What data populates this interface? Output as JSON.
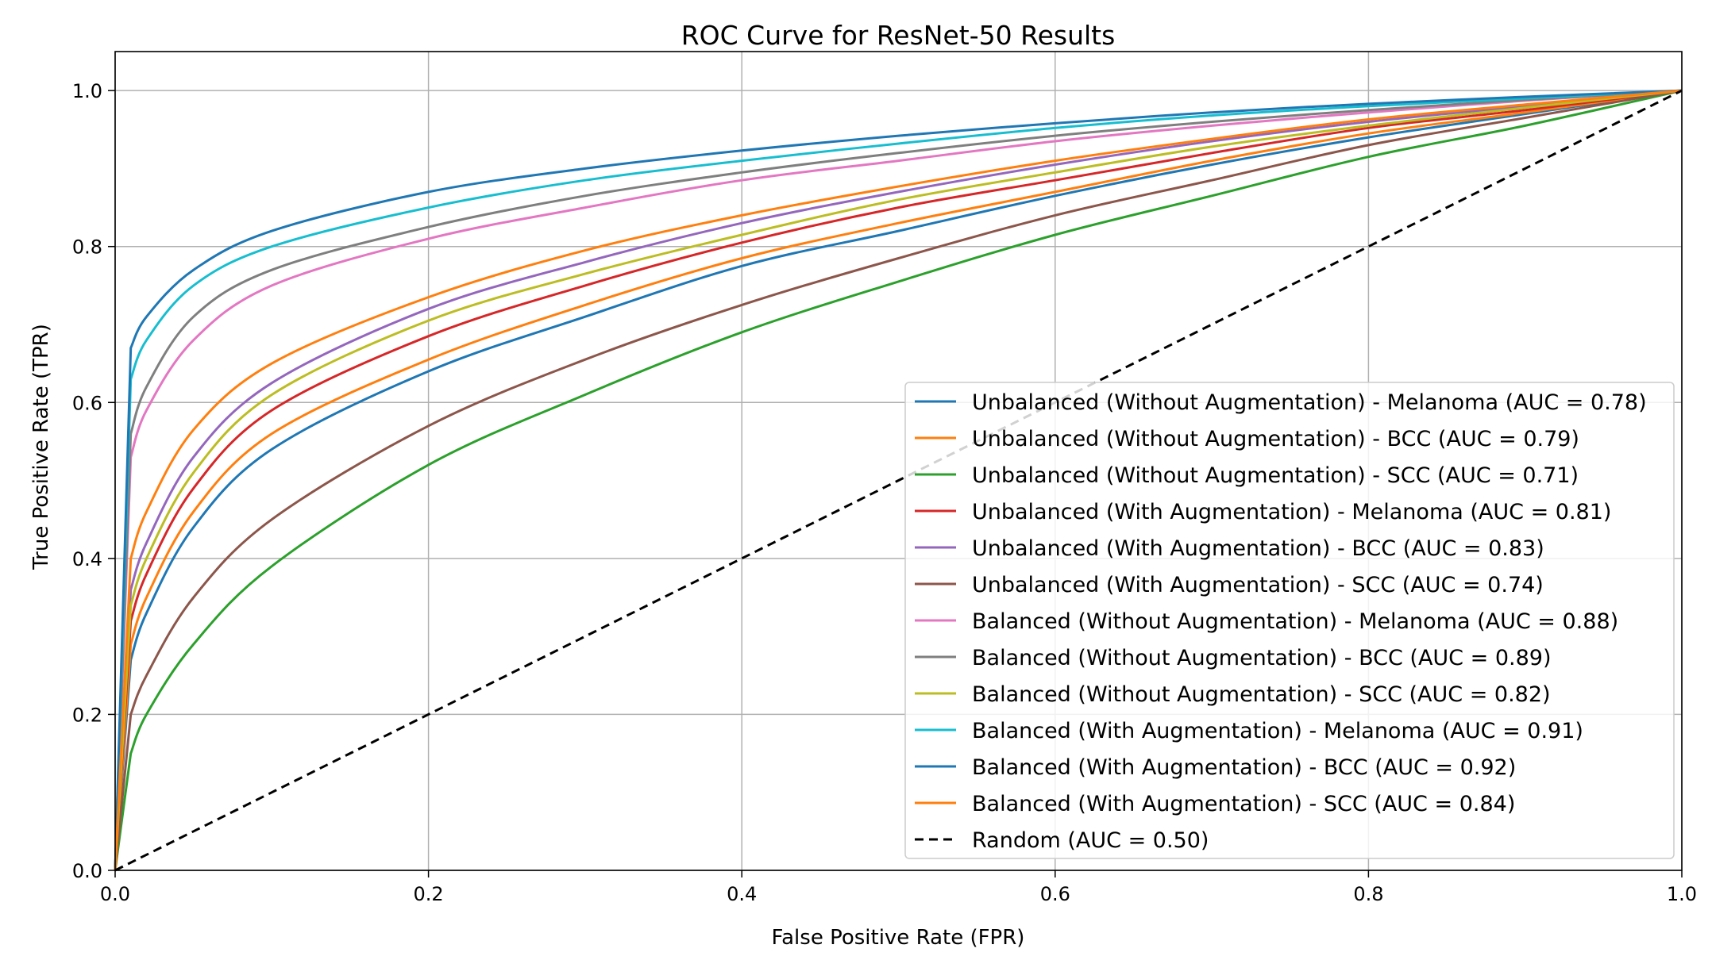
{
  "chart_data": {
    "type": "line",
    "title": "ROC Curve for ResNet-50 Results",
    "xlabel": "False Positive Rate (FPR)",
    "ylabel": "True Positive Rate (TPR)",
    "xlim": [
      0.0,
      1.0
    ],
    "ylim": [
      0.0,
      1.05
    ],
    "grid": true,
    "legend_position": "lower-right",
    "x_ticks": [
      0.0,
      0.2,
      0.4,
      0.6,
      0.8,
      1.0
    ],
    "x_tick_labels": [
      "0.0",
      "0.2",
      "0.4",
      "0.6",
      "0.8",
      "1.0"
    ],
    "y_ticks": [
      0.0,
      0.2,
      0.4,
      0.6,
      0.8,
      1.0
    ],
    "y_tick_labels": [
      "0.0",
      "0.2",
      "0.4",
      "0.6",
      "0.8",
      "1.0"
    ],
    "series": [
      {
        "name": "Unbalanced (Without Augmentation) - Melanoma (AUC = 0.78)",
        "auc": 0.78,
        "color": "#1f77b4",
        "dashed": false,
        "x": [
          0,
          0.01,
          0.02,
          0.05,
          0.1,
          0.2,
          0.3,
          0.4,
          0.5,
          0.6,
          0.7,
          0.8,
          0.9,
          1.0
        ],
        "y": [
          0,
          0.27,
          0.33,
          0.44,
          0.54,
          0.64,
          0.71,
          0.775,
          0.82,
          0.865,
          0.905,
          0.94,
          0.97,
          1.0
        ]
      },
      {
        "name": "Unbalanced (Without Augmentation) - BCC (AUC = 0.79)",
        "auc": 0.79,
        "color": "#ff7f0e",
        "dashed": false,
        "x": [
          0,
          0.01,
          0.02,
          0.05,
          0.1,
          0.2,
          0.3,
          0.4,
          0.5,
          0.6,
          0.7,
          0.8,
          0.9,
          1.0
        ],
        "y": [
          0,
          0.29,
          0.35,
          0.46,
          0.56,
          0.655,
          0.725,
          0.785,
          0.83,
          0.87,
          0.91,
          0.945,
          0.972,
          1.0
        ]
      },
      {
        "name": "Unbalanced (Without Augmentation) - SCC (AUC = 0.71)",
        "auc": 0.71,
        "color": "#2ca02c",
        "dashed": false,
        "x": [
          0,
          0.01,
          0.02,
          0.05,
          0.1,
          0.2,
          0.3,
          0.4,
          0.5,
          0.6,
          0.7,
          0.8,
          0.9,
          1.0
        ],
        "y": [
          0,
          0.15,
          0.2,
          0.29,
          0.39,
          0.52,
          0.61,
          0.69,
          0.755,
          0.815,
          0.865,
          0.915,
          0.955,
          1.0
        ]
      },
      {
        "name": "Unbalanced (With Augmentation) - Melanoma (AUC = 0.81)",
        "auc": 0.81,
        "color": "#d62728",
        "dashed": false,
        "x": [
          0,
          0.01,
          0.02,
          0.05,
          0.1,
          0.2,
          0.3,
          0.4,
          0.5,
          0.6,
          0.7,
          0.8,
          0.9,
          1.0
        ],
        "y": [
          0,
          0.32,
          0.38,
          0.49,
          0.59,
          0.685,
          0.75,
          0.805,
          0.85,
          0.885,
          0.92,
          0.952,
          0.975,
          1.0
        ]
      },
      {
        "name": "Unbalanced (With Augmentation) - BCC (AUC = 0.83)",
        "auc": 0.83,
        "color": "#9467bd",
        "dashed": false,
        "x": [
          0,
          0.01,
          0.02,
          0.05,
          0.1,
          0.2,
          0.3,
          0.4,
          0.5,
          0.6,
          0.7,
          0.8,
          0.9,
          1.0
        ],
        "y": [
          0,
          0.36,
          0.42,
          0.53,
          0.625,
          0.72,
          0.78,
          0.83,
          0.87,
          0.905,
          0.935,
          0.96,
          0.98,
          1.0
        ]
      },
      {
        "name": "Unbalanced (With Augmentation) - SCC (AUC = 0.74)",
        "auc": 0.74,
        "color": "#8c564b",
        "dashed": false,
        "x": [
          0,
          0.01,
          0.02,
          0.05,
          0.1,
          0.2,
          0.3,
          0.4,
          0.5,
          0.6,
          0.7,
          0.8,
          0.9,
          1.0
        ],
        "y": [
          0,
          0.2,
          0.25,
          0.35,
          0.45,
          0.57,
          0.655,
          0.725,
          0.785,
          0.84,
          0.885,
          0.93,
          0.965,
          1.0
        ]
      },
      {
        "name": "Balanced (Without Augmentation) - Melanoma (AUC = 0.88)",
        "auc": 0.88,
        "color": "#e377c2",
        "dashed": false,
        "x": [
          0,
          0.01,
          0.02,
          0.05,
          0.1,
          0.2,
          0.3,
          0.4,
          0.5,
          0.6,
          0.7,
          0.8,
          0.9,
          1.0
        ],
        "y": [
          0,
          0.53,
          0.59,
          0.68,
          0.75,
          0.81,
          0.85,
          0.885,
          0.91,
          0.935,
          0.955,
          0.972,
          0.987,
          1.0
        ]
      },
      {
        "name": "Balanced (Without Augmentation) - BCC (AUC = 0.89)",
        "auc": 0.89,
        "color": "#7f7f7f",
        "dashed": false,
        "x": [
          0,
          0.01,
          0.02,
          0.05,
          0.1,
          0.2,
          0.3,
          0.4,
          0.5,
          0.6,
          0.7,
          0.8,
          0.9,
          1.0
        ],
        "y": [
          0,
          0.56,
          0.62,
          0.71,
          0.77,
          0.825,
          0.865,
          0.895,
          0.92,
          0.942,
          0.96,
          0.975,
          0.988,
          1.0
        ]
      },
      {
        "name": "Balanced (Without Augmentation) - SCC (AUC = 0.82)",
        "auc": 0.82,
        "color": "#bcbd22",
        "dashed": false,
        "x": [
          0,
          0.01,
          0.02,
          0.05,
          0.1,
          0.2,
          0.3,
          0.4,
          0.5,
          0.6,
          0.7,
          0.8,
          0.9,
          1.0
        ],
        "y": [
          0,
          0.34,
          0.4,
          0.51,
          0.61,
          0.705,
          0.765,
          0.815,
          0.86,
          0.895,
          0.928,
          0.955,
          0.978,
          1.0
        ]
      },
      {
        "name": "Balanced (With Augmentation) - Melanoma (AUC = 0.91)",
        "auc": 0.91,
        "color": "#17becf",
        "dashed": false,
        "x": [
          0,
          0.01,
          0.02,
          0.05,
          0.1,
          0.2,
          0.3,
          0.4,
          0.5,
          0.6,
          0.7,
          0.8,
          0.9,
          1.0
        ],
        "y": [
          0,
          0.63,
          0.68,
          0.75,
          0.8,
          0.85,
          0.885,
          0.91,
          0.932,
          0.952,
          0.968,
          0.98,
          0.99,
          1.0
        ]
      },
      {
        "name": "Balanced (With Augmentation) - BCC (AUC = 0.92)",
        "auc": 0.92,
        "color": "#1f77b4",
        "dashed": false,
        "x": [
          0,
          0.01,
          0.02,
          0.05,
          0.1,
          0.2,
          0.3,
          0.4,
          0.5,
          0.6,
          0.7,
          0.8,
          0.9,
          1.0
        ],
        "y": [
          0,
          0.67,
          0.71,
          0.77,
          0.82,
          0.87,
          0.9,
          0.923,
          0.942,
          0.958,
          0.972,
          0.983,
          0.992,
          1.0
        ]
      },
      {
        "name": "Balanced (With Augmentation) - SCC (AUC = 0.84)",
        "auc": 0.84,
        "color": "#ff7f0e",
        "dashed": false,
        "x": [
          0,
          0.01,
          0.02,
          0.05,
          0.1,
          0.2,
          0.3,
          0.4,
          0.5,
          0.6,
          0.7,
          0.8,
          0.9,
          1.0
        ],
        "y": [
          0,
          0.4,
          0.46,
          0.565,
          0.65,
          0.735,
          0.795,
          0.84,
          0.877,
          0.91,
          0.938,
          0.963,
          0.982,
          1.0
        ]
      },
      {
        "name": "Random (AUC = 0.50)",
        "auc": 0.5,
        "color": "#000000",
        "dashed": true,
        "x": [
          0,
          1.0
        ],
        "y": [
          0,
          1.0
        ]
      }
    ]
  }
}
